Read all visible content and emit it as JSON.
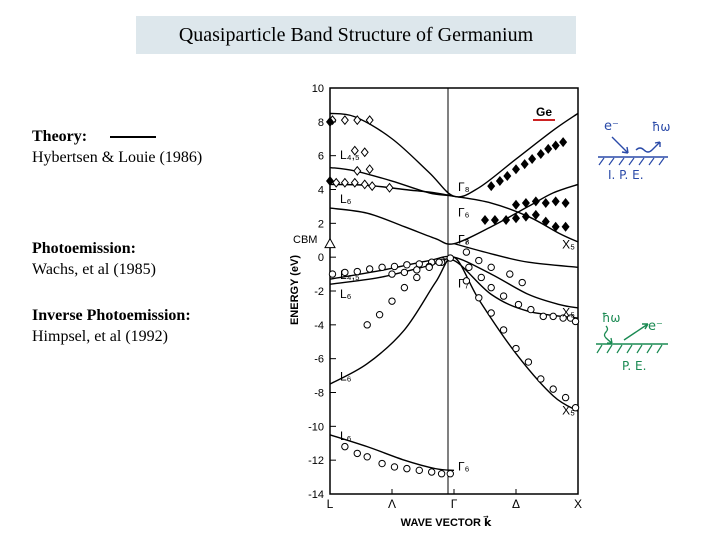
{
  "header": {
    "title": "Quasiparticle Band Structure of Germanium"
  },
  "legend": {
    "theory_heading": "Theory:",
    "theory_source": "Hybertsen & Louie (1986)",
    "pe_heading": "Photoemission:",
    "pe_source": "Wachs, et al (1985)",
    "ipe_heading": "Inverse Photoemission:",
    "ipe_source": "Himpsel, et al (1992)"
  },
  "annotations": {
    "material": "Ge",
    "cbm": "CBM",
    "ipe_label": "I. P. E.",
    "pe_label": "P. E.",
    "electron": "e⁻",
    "photon": "ħω"
  },
  "colors": {
    "ipe_note": "#2a4aa8",
    "pe_note": "#1a8a52",
    "material_underline": "#cc2222"
  },
  "chart_data": {
    "type": "line",
    "xlabel": "WAVE VECTOR k⃗",
    "ylabel": "ENERGY (eV)",
    "ylim": [
      -14,
      10
    ],
    "yticks": [
      10,
      8,
      6,
      4,
      2,
      0,
      -2,
      -4,
      -6,
      -8,
      -10,
      -12,
      -14
    ],
    "x_points": [
      "L",
      "Λ",
      "Γ",
      "Δ",
      "X"
    ],
    "x_positions": [
      0,
      0.5,
      1,
      1.5,
      2
    ],
    "grid": false,
    "legend": "left",
    "point_labels": [
      {
        "text": "L₄,₅",
        "x": 0.0,
        "y": 5.8
      },
      {
        "text": "L₆",
        "x": 0.0,
        "y": 3.2
      },
      {
        "text": "Γ₈",
        "x": 1.0,
        "y": 3.9
      },
      {
        "text": "Γ₆",
        "x": 1.0,
        "y": 2.4
      },
      {
        "text": "Γ₇",
        "x": 1.0,
        "y": 0.8
      },
      {
        "text": "Γ₈",
        "x": 1.0,
        "y": 0.8
      },
      {
        "text": "L₄,₅",
        "x": 0.0,
        "y": -1.3
      },
      {
        "text": "L₆",
        "x": 0.0,
        "y": -2.4
      },
      {
        "text": "Γ₇",
        "x": 1.0,
        "y": -1.8
      },
      {
        "text": "X₅",
        "x": 2.0,
        "y": 0.5
      },
      {
        "text": "X₅",
        "x": 2.0,
        "y": -3.5
      },
      {
        "text": "L₆",
        "x": 0.0,
        "y": -7.3
      },
      {
        "text": "X₅",
        "x": 2.0,
        "y": -9.3
      },
      {
        "text": "L₆",
        "x": 0.0,
        "y": -10.8
      },
      {
        "text": "Γ₆",
        "x": 1.0,
        "y": -12.6
      }
    ],
    "theory_bands": [
      {
        "points": [
          [
            0,
            8.5
          ],
          [
            0.2,
            8.3
          ],
          [
            0.5,
            7.0
          ],
          [
            0.8,
            5.0
          ],
          [
            1.0,
            3.6
          ],
          [
            1.2,
            4.1
          ],
          [
            1.5,
            5.8
          ],
          [
            1.8,
            7.5
          ],
          [
            2.0,
            8.5
          ]
        ]
      },
      {
        "points": [
          [
            0,
            5.3
          ],
          [
            0.2,
            5.1
          ],
          [
            0.5,
            4.5
          ],
          [
            0.8,
            3.8
          ],
          [
            1.0,
            3.6
          ],
          [
            1.3,
            3.2
          ],
          [
            1.6,
            2.4
          ],
          [
            1.85,
            1.4
          ],
          [
            2.0,
            0.9
          ]
        ]
      },
      {
        "points": [
          [
            0,
            4.3
          ],
          [
            0.3,
            4.25
          ],
          [
            0.6,
            4.0
          ],
          [
            0.85,
            3.8
          ],
          [
            1.0,
            3.6
          ]
        ]
      },
      {
        "points": [
          [
            0,
            2.9
          ],
          [
            0.3,
            2.6
          ],
          [
            0.6,
            1.8
          ],
          [
            0.85,
            1.1
          ],
          [
            1.0,
            0.8
          ],
          [
            1.3,
            1.8
          ],
          [
            1.6,
            3.0
          ],
          [
            1.8,
            3.8
          ],
          [
            2.0,
            4.3
          ]
        ]
      },
      {
        "points": [
          [
            1.0,
            0.8
          ],
          [
            1.3,
            0.2
          ],
          [
            1.6,
            -0.3
          ],
          [
            2.0,
            -0.6
          ]
        ]
      },
      {
        "points": [
          [
            0,
            -1.3
          ],
          [
            0.4,
            -0.8
          ],
          [
            0.8,
            -0.2
          ],
          [
            1.0,
            0.0
          ],
          [
            1.3,
            -1.0
          ],
          [
            1.6,
            -2.2
          ],
          [
            1.85,
            -2.8
          ],
          [
            2.0,
            -3.0
          ]
        ]
      },
      {
        "points": [
          [
            0,
            -1.6
          ],
          [
            0.4,
            -1.2
          ],
          [
            0.8,
            -0.5
          ],
          [
            1.0,
            -0.2
          ],
          [
            1.3,
            -2.2
          ],
          [
            1.6,
            -3.2
          ],
          [
            2.0,
            -3.6
          ]
        ]
      },
      {
        "points": [
          [
            0,
            -7.5
          ],
          [
            0.3,
            -6.3
          ],
          [
            0.6,
            -4.3
          ],
          [
            0.85,
            -1.5
          ],
          [
            1.0,
            0.0
          ],
          [
            1.2,
            -2.5
          ],
          [
            1.5,
            -5.7
          ],
          [
            1.8,
            -8.2
          ],
          [
            2.0,
            -9.1
          ]
        ]
      },
      {
        "points": [
          [
            0,
            -10.5
          ],
          [
            0.3,
            -11.2
          ],
          [
            0.6,
            -12.0
          ],
          [
            0.85,
            -12.5
          ],
          [
            1.0,
            -12.6
          ]
        ]
      }
    ],
    "photoemission_points": [
      [
        0.02,
        -1.0
      ],
      [
        0.12,
        -0.9
      ],
      [
        0.22,
        -0.85
      ],
      [
        0.32,
        -0.7
      ],
      [
        0.42,
        -0.6
      ],
      [
        0.52,
        -0.55
      ],
      [
        0.62,
        -0.45
      ],
      [
        0.72,
        -0.4
      ],
      [
        0.82,
        -0.3
      ],
      [
        0.9,
        -0.2
      ],
      [
        0.97,
        -0.05
      ],
      [
        0.5,
        -1.0
      ],
      [
        0.6,
        -0.9
      ],
      [
        0.7,
        -0.75
      ],
      [
        0.8,
        -0.55
      ],
      [
        0.9,
        -0.3
      ],
      [
        0.3,
        -4.0
      ],
      [
        0.4,
        -3.4
      ],
      [
        0.5,
        -2.6
      ],
      [
        0.6,
        -1.8
      ],
      [
        0.7,
        -1.2
      ],
      [
        0.8,
        -0.6
      ],
      [
        0.88,
        -0.3
      ],
      [
        1.12,
        -0.6
      ],
      [
        1.22,
        -1.2
      ],
      [
        1.3,
        -1.8
      ],
      [
        1.4,
        -2.3
      ],
      [
        1.52,
        -2.8
      ],
      [
        1.62,
        -3.1
      ],
      [
        1.72,
        -3.5
      ],
      [
        1.8,
        -3.5
      ],
      [
        1.88,
        -3.6
      ],
      [
        1.94,
        -3.6
      ],
      [
        1.98,
        -3.8
      ],
      [
        1.1,
        -1.4
      ],
      [
        1.2,
        -2.4
      ],
      [
        1.3,
        -3.3
      ],
      [
        1.4,
        -4.3
      ],
      [
        1.5,
        -5.4
      ],
      [
        1.6,
        -6.2
      ],
      [
        1.7,
        -7.2
      ],
      [
        1.8,
        -7.8
      ],
      [
        1.9,
        -8.3
      ],
      [
        1.98,
        -8.9
      ],
      [
        1.1,
        0.3
      ],
      [
        1.2,
        -0.2
      ],
      [
        1.3,
        -0.6
      ],
      [
        1.45,
        -1.0
      ],
      [
        1.55,
        -1.5
      ],
      [
        0.12,
        -11.2
      ],
      [
        0.22,
        -11.6
      ],
      [
        0.3,
        -11.8
      ],
      [
        0.42,
        -12.2
      ],
      [
        0.52,
        -12.4
      ],
      [
        0.62,
        -12.5
      ],
      [
        0.72,
        -12.6
      ],
      [
        0.82,
        -12.7
      ],
      [
        0.9,
        -12.8
      ],
      [
        0.97,
        -12.8
      ]
    ],
    "inverse_photoemission_points": [
      [
        0.02,
        8.1
      ],
      [
        0.12,
        8.1
      ],
      [
        0.22,
        8.1
      ],
      [
        0.32,
        8.1
      ],
      [
        0.2,
        6.3
      ],
      [
        0.28,
        6.2
      ],
      [
        0.22,
        5.1
      ],
      [
        0.32,
        5.2
      ],
      [
        0.05,
        4.4
      ],
      [
        0.12,
        4.4
      ],
      [
        0.2,
        4.4
      ],
      [
        0.28,
        4.3
      ],
      [
        0.34,
        4.2
      ],
      [
        0.48,
        4.1
      ]
    ],
    "inverse_photoemission_filled_points": [
      [
        0.0,
        8.0
      ],
      [
        0.0,
        4.5
      ],
      [
        1.3,
        4.2
      ],
      [
        1.37,
        4.5
      ],
      [
        1.43,
        4.8
      ],
      [
        1.5,
        5.2
      ],
      [
        1.57,
        5.5
      ],
      [
        1.63,
        5.8
      ],
      [
        1.7,
        6.1
      ],
      [
        1.76,
        6.4
      ],
      [
        1.82,
        6.6
      ],
      [
        1.88,
        6.8
      ],
      [
        1.25,
        2.2
      ],
      [
        1.33,
        2.2
      ],
      [
        1.42,
        2.2
      ],
      [
        1.5,
        2.3
      ],
      [
        1.58,
        2.4
      ],
      [
        1.66,
        2.5
      ],
      [
        1.74,
        2.1
      ],
      [
        1.82,
        1.8
      ],
      [
        1.9,
        1.8
      ],
      [
        1.5,
        3.1
      ],
      [
        1.58,
        3.2
      ],
      [
        1.66,
        3.3
      ],
      [
        1.74,
        3.2
      ],
      [
        1.82,
        3.3
      ],
      [
        1.9,
        3.2
      ]
    ],
    "cbm_marker": {
      "x": 0.0,
      "y": 0.8
    }
  }
}
